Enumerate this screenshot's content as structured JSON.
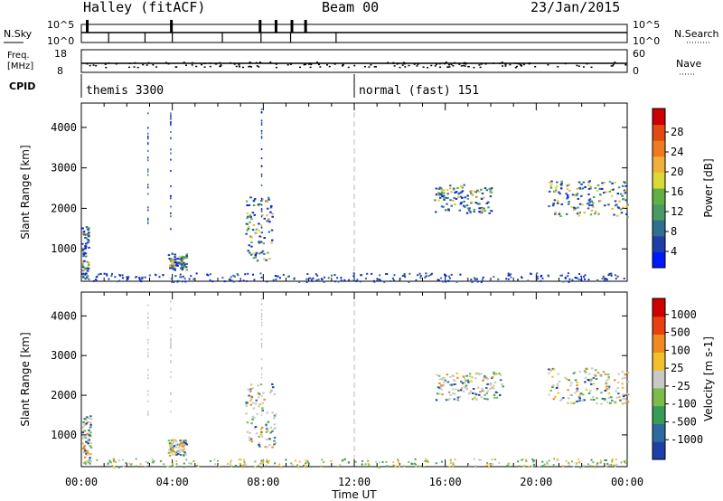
{
  "header": {
    "station": "Halley (fitACF)",
    "beam": "Beam 00",
    "date": "23/Jan/2015"
  },
  "noise_panel": {
    "left_label": "N.Sky",
    "right_label": "N.Search",
    "left_ticks": [
      "10^5",
      "10^0"
    ],
    "right_ticks": [
      "10^5",
      "10^0"
    ]
  },
  "freq_panel": {
    "left_label_1": "Freq.",
    "left_label_2": "[MHz]",
    "right_label": "Nave",
    "left_ticks": [
      "18",
      "8"
    ],
    "right_ticks": [
      "60",
      "0"
    ]
  },
  "cpid_panel": {
    "label": "CPID",
    "modes": [
      {
        "name": "themis 3300",
        "start": 0.0
      },
      {
        "name": "normal (fast) 151",
        "start": 12.0
      }
    ]
  },
  "chart_data": [
    {
      "type": "heatmap",
      "name": "power-panel",
      "ylabel": "Slant Range [km]",
      "xlabel": "",
      "xlim": [
        0,
        24
      ],
      "ylim": [
        200,
        4600
      ],
      "yticks": [
        1000,
        2000,
        3000,
        4000
      ],
      "colorbar": {
        "label": "Power [dB]",
        "ticks": [
          "4",
          "8",
          "12",
          "16",
          "20",
          "24",
          "28"
        ],
        "colors": [
          "#0018ff",
          "#1f3fa8",
          "#2f6f8f",
          "#4c9a63",
          "#62b043",
          "#d9d938",
          "#f2b03a",
          "#f07a20",
          "#e34a12",
          "#cc0000"
        ]
      },
      "features": [
        {
          "t_start": 0.0,
          "t_end": 0.3,
          "range_start": 300,
          "range_end": 1600
        },
        {
          "t_start": 3.8,
          "t_end": 4.6,
          "range_start": 500,
          "range_end": 900
        },
        {
          "t_start": 7.2,
          "t_end": 8.4,
          "range_start": 700,
          "range_end": 2300
        },
        {
          "t_start": 15.5,
          "t_end": 18.0,
          "range_start": 1900,
          "range_end": 2600
        },
        {
          "t_start": 20.5,
          "t_end": 24.0,
          "range_start": 1800,
          "range_end": 2700
        }
      ]
    },
    {
      "type": "heatmap",
      "name": "velocity-panel",
      "ylabel": "Slant Range [km]",
      "xlabel": "Time UT",
      "xlim": [
        0,
        24
      ],
      "ylim": [
        200,
        4600
      ],
      "yticks": [
        1000,
        2000,
        3000,
        4000
      ],
      "xticks": [
        "00:00",
        "04:00",
        "08:00",
        "12:00",
        "16:00",
        "20:00",
        "00:00"
      ],
      "colorbar": {
        "label": "Velocity [m s-1]",
        "ticks": [
          "1000",
          "500",
          "100",
          "25",
          "-25",
          "-100",
          "-500",
          "-1000"
        ],
        "colors": [
          "#1f3fa8",
          "#2e6aa0",
          "#3a9a58",
          "#7cbc4a",
          "#c8c8c8",
          "#f2c02a",
          "#f08a20",
          "#e84010",
          "#d00000"
        ]
      },
      "features": [
        {
          "t_start": 0.0,
          "t_end": 0.4,
          "range_start": 300,
          "range_end": 1500
        },
        {
          "t_start": 3.8,
          "t_end": 4.6,
          "range_start": 500,
          "range_end": 900
        },
        {
          "t_start": 7.2,
          "t_end": 8.5,
          "range_start": 700,
          "range_end": 2300
        },
        {
          "t_start": 15.5,
          "t_end": 18.5,
          "range_start": 1900,
          "range_end": 2600
        },
        {
          "t_start": 20.5,
          "t_end": 24.0,
          "range_start": 1800,
          "range_end": 2700
        }
      ]
    }
  ]
}
